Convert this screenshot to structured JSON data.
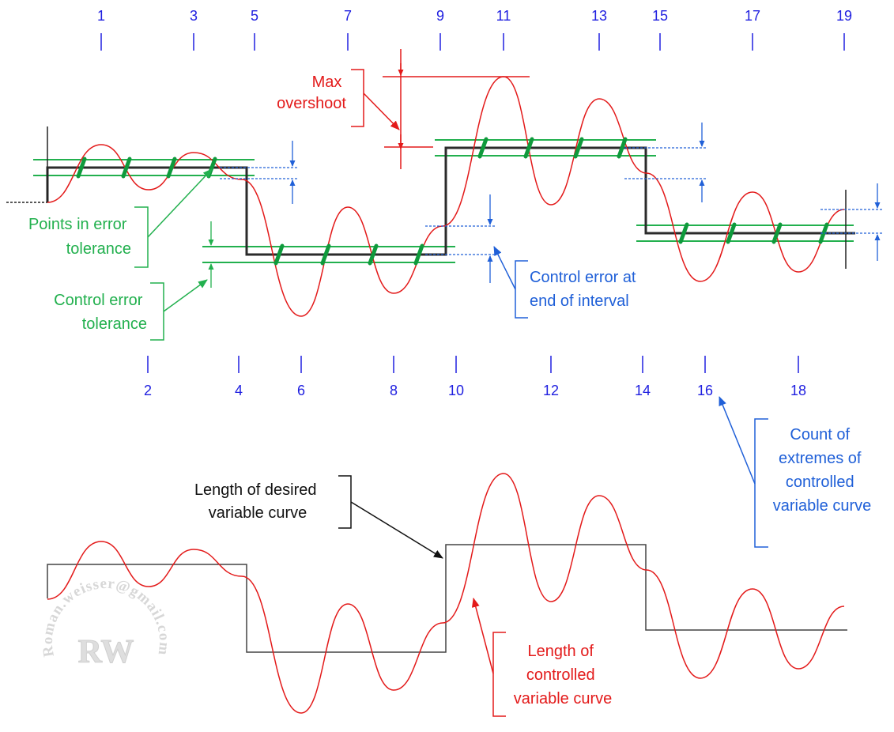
{
  "extreme_numbers_top": [
    "1",
    "3",
    "5",
    "7",
    "9",
    "11",
    "13",
    "15",
    "17",
    "19"
  ],
  "extreme_numbers_bottom": [
    "2",
    "4",
    "6",
    "8",
    "10",
    "12",
    "14",
    "16",
    "18"
  ],
  "labels": {
    "max_overshoot": [
      "Max",
      "overshoot"
    ],
    "points_in_error_tolerance": [
      "Points in error",
      "tolerance"
    ],
    "control_error_tolerance": [
      "Control error",
      "tolerance"
    ],
    "control_error_end_interval": [
      "Control error at",
      "end of interval"
    ],
    "count_of_extremes": [
      "Count of",
      "extremes of",
      "controlled",
      "variable curve"
    ],
    "length_desired_curve": [
      "Length of desired",
      "variable curve"
    ],
    "length_controlled_curve": [
      "Length of",
      "controlled",
      "variable curve"
    ]
  },
  "watermark": {
    "email": "Roman.weisser@gmail.com",
    "initials": "RW"
  },
  "colors": {
    "controlled_curve": "#e31a1a",
    "desired_curve": "#222222",
    "tolerance_band": "#22b04e",
    "in_tolerance_points": "#0f9a3c",
    "error_annotation": "#2060d8",
    "extreme_numbers": "#2020e0"
  }
}
